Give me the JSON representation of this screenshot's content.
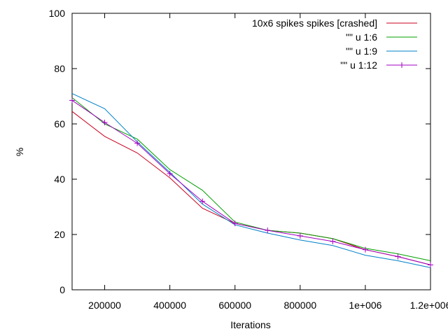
{
  "chart_data": {
    "type": "line",
    "xlabel": "Iterations",
    "ylabel": "%",
    "xlim": [
      100000,
      1200000
    ],
    "ylim": [
      0,
      100
    ],
    "xticks": [
      {
        "value": 200000,
        "label": "200000"
      },
      {
        "value": 400000,
        "label": "400000"
      },
      {
        "value": 600000,
        "label": "600000"
      },
      {
        "value": 800000,
        "label": "800000"
      },
      {
        "value": 1000000,
        "label": "1e+006"
      },
      {
        "value": 1200000,
        "label": "1.2e+006"
      }
    ],
    "yticks": [
      {
        "value": 0,
        "label": "0"
      },
      {
        "value": 20,
        "label": "20"
      },
      {
        "value": 40,
        "label": "40"
      },
      {
        "value": 60,
        "label": "60"
      },
      {
        "value": 80,
        "label": "80"
      },
      {
        "value": 100,
        "label": "100"
      }
    ],
    "grid": false,
    "legend_position": "top-right",
    "series": [
      {
        "name": "10x6 spikes spikes [crashed]",
        "color": "#c8001e",
        "marker": "none",
        "x": [
          100000,
          200000,
          300000,
          400000,
          500000,
          600000,
          700000,
          800000,
          900000,
          1000000,
          1100000,
          1200000
        ],
        "y": [
          64.5,
          55.5,
          49.5,
          40.5,
          29.5,
          24,
          21.5,
          20.5,
          18.5,
          14.5,
          12,
          9
        ]
      },
      {
        "name": "\"\" u 1:6",
        "color": "#00a000",
        "marker": "none",
        "x": [
          100000,
          200000,
          300000,
          400000,
          500000,
          600000,
          700000,
          800000,
          900000,
          1000000,
          1100000,
          1200000
        ],
        "y": [
          69.5,
          60,
          54.5,
          43.5,
          36,
          24.5,
          21.5,
          20.5,
          18.5,
          15,
          13,
          10.5
        ]
      },
      {
        "name": "\"\" u 1:9",
        "color": "#0080c8",
        "marker": "none",
        "x": [
          100000,
          200000,
          300000,
          400000,
          500000,
          600000,
          700000,
          800000,
          900000,
          1000000,
          1100000,
          1200000
        ],
        "y": [
          71,
          65.5,
          53.5,
          42.5,
          31,
          23.5,
          20.5,
          18,
          16,
          12.5,
          10.5,
          8
        ]
      },
      {
        "name": "\"\" u 1:12",
        "color": "#a000c0",
        "marker": "plus",
        "x": [
          100000,
          200000,
          300000,
          400000,
          500000,
          600000,
          700000,
          800000,
          900000,
          1000000,
          1100000,
          1200000
        ],
        "y": [
          68.5,
          60.5,
          53,
          42,
          32,
          24,
          21.5,
          19.5,
          17.5,
          14.5,
          12,
          9
        ]
      }
    ]
  }
}
